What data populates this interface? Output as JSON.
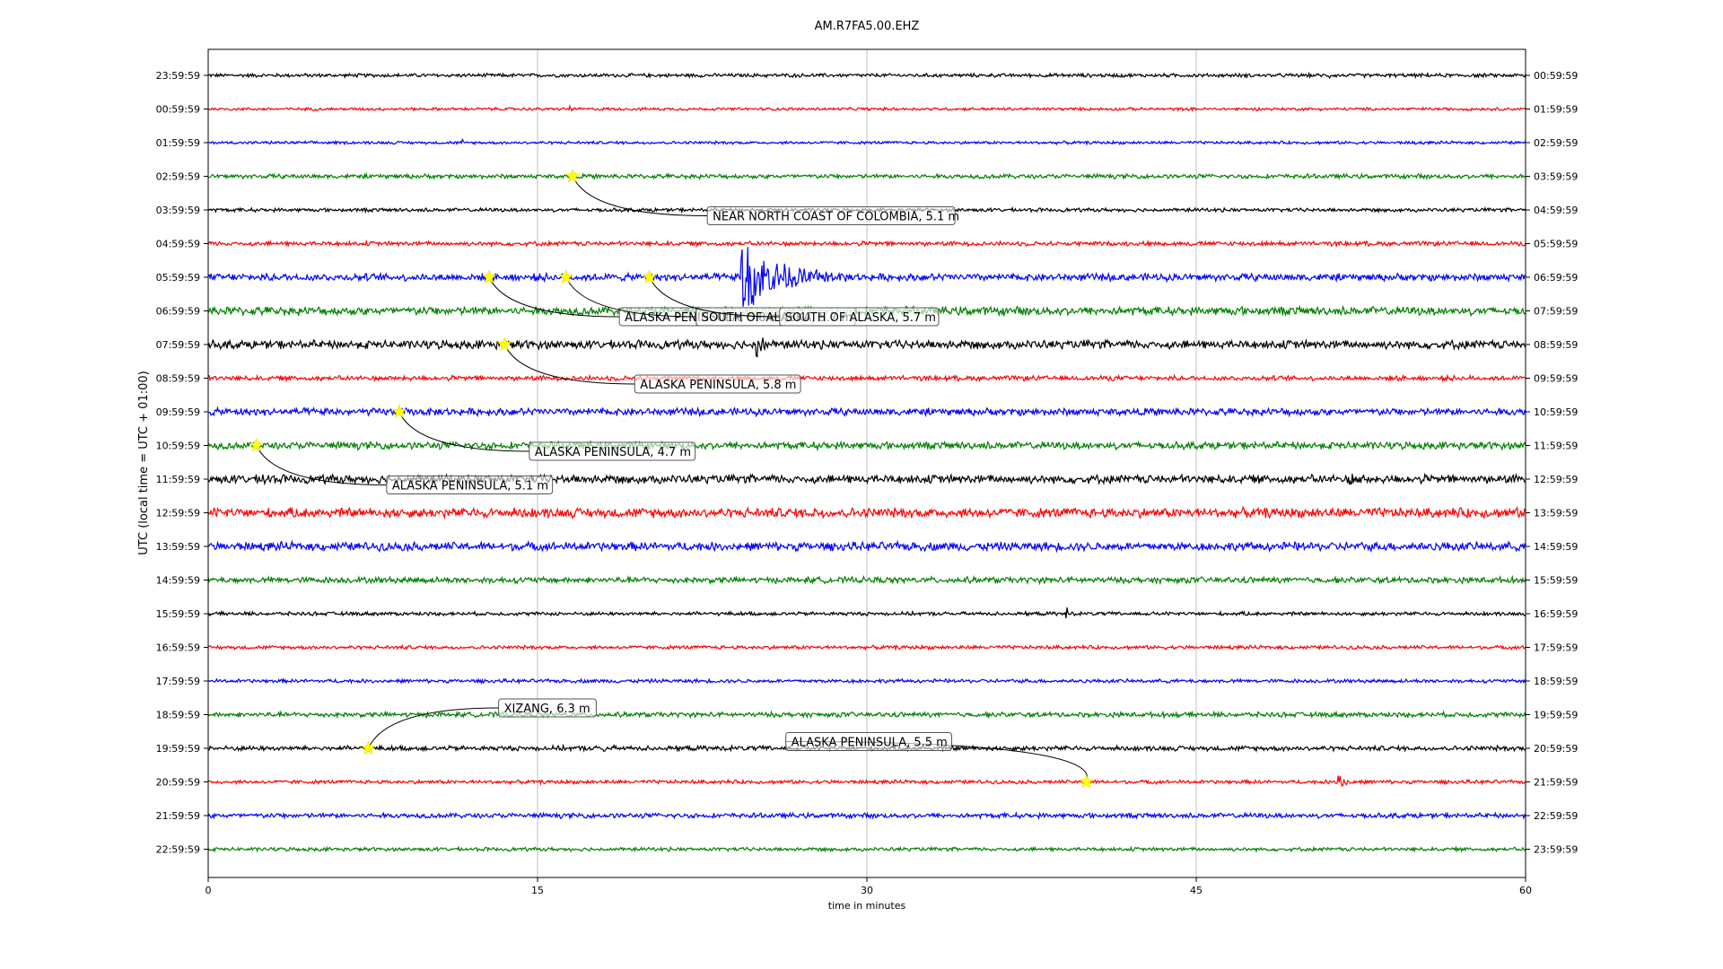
{
  "chart_data": {
    "type": "line",
    "title": "AM.R7FA5.00.EHZ",
    "xlabel": "time in minutes",
    "ylabel": "UTC (local time = UTC + 01:00)",
    "xlim": [
      0,
      60
    ],
    "x_ticks": [
      "0",
      "15",
      "30",
      "45",
      "60"
    ],
    "x_tick_values": [
      0,
      15,
      30,
      45,
      60
    ],
    "grid": "vertical",
    "row_colors": [
      "#000000",
      "#ff0000",
      "#0000ff",
      "#008000"
    ],
    "rows": [
      {
        "left": "23:59:59",
        "right": "00:59:59",
        "noise": 0.15
      },
      {
        "left": "00:59:59",
        "right": "01:59:59",
        "noise": 0.12
      },
      {
        "left": "01:59:59",
        "right": "02:59:59",
        "noise": 0.12
      },
      {
        "left": "02:59:59",
        "right": "03:59:59",
        "noise": 0.18
      },
      {
        "left": "03:59:59",
        "right": "04:59:59",
        "noise": 0.15
      },
      {
        "left": "04:59:59",
        "right": "05:59:59",
        "noise": 0.18
      },
      {
        "left": "05:59:59",
        "right": "06:59:59",
        "noise": 0.3
      },
      {
        "left": "06:59:59",
        "right": "07:59:59",
        "noise": 0.35
      },
      {
        "left": "07:59:59",
        "right": "08:59:59",
        "noise": 0.35
      },
      {
        "left": "08:59:59",
        "right": "09:59:59",
        "noise": 0.2
      },
      {
        "left": "09:59:59",
        "right": "10:59:59",
        "noise": 0.3
      },
      {
        "left": "10:59:59",
        "right": "11:59:59",
        "noise": 0.3
      },
      {
        "left": "11:59:59",
        "right": "12:59:59",
        "noise": 0.35
      },
      {
        "left": "12:59:59",
        "right": "13:59:59",
        "noise": 0.4
      },
      {
        "left": "13:59:59",
        "right": "14:59:59",
        "noise": 0.35
      },
      {
        "left": "14:59:59",
        "right": "15:59:59",
        "noise": 0.25
      },
      {
        "left": "15:59:59",
        "right": "16:59:59",
        "noise": 0.15
      },
      {
        "left": "16:59:59",
        "right": "17:59:59",
        "noise": 0.15
      },
      {
        "left": "17:59:59",
        "right": "18:59:59",
        "noise": 0.15
      },
      {
        "left": "18:59:59",
        "right": "19:59:59",
        "noise": 0.2
      },
      {
        "left": "19:59:59",
        "right": "20:59:59",
        "noise": 0.2
      },
      {
        "left": "20:59:59",
        "right": "21:59:59",
        "noise": 0.15
      },
      {
        "left": "21:59:59",
        "right": "22:59:59",
        "noise": 0.2
      },
      {
        "left": "22:59:59",
        "right": "23:59:59",
        "noise": 0.15
      }
    ],
    "bursts": [
      {
        "row": 0,
        "minute": 31.3,
        "amplitude": 0.35,
        "duration": 0.2
      },
      {
        "row": 0,
        "minute": 51.1,
        "amplitude": 0.3,
        "duration": 0.15
      },
      {
        "row": 0,
        "minute": 60.0,
        "amplitude": 0.6,
        "duration": 0.1
      },
      {
        "row": 1,
        "minute": 16.5,
        "amplitude": 0.25,
        "duration": 0.2
      },
      {
        "row": 2,
        "minute": 11.6,
        "amplitude": 0.3,
        "duration": 0.2
      },
      {
        "row": 2,
        "minute": 55.0,
        "amplitude": 0.7,
        "duration": 0.1
      },
      {
        "row": 6,
        "minute": 24.3,
        "amplitude": 3.6,
        "duration": 5.0
      },
      {
        "row": 8,
        "minute": 25.0,
        "amplitude": 1.2,
        "duration": 0.8
      },
      {
        "row": 12,
        "minute": 2.5,
        "amplitude": 0.6,
        "duration": 0.5
      },
      {
        "row": 12,
        "minute": 52.0,
        "amplitude": 0.4,
        "duration": 2.5
      },
      {
        "row": 13,
        "minute": 27.5,
        "amplitude": 0.5,
        "duration": 1.0
      },
      {
        "row": 13,
        "minute": 8.0,
        "amplitude": 0.4,
        "duration": 0.8
      },
      {
        "row": 16,
        "minute": 39.1,
        "amplitude": 0.6,
        "duration": 0.3
      },
      {
        "row": 20,
        "minute": 18.0,
        "amplitude": 0.3,
        "duration": 0.8
      },
      {
        "row": 21,
        "minute": 51.5,
        "amplitude": 0.7,
        "duration": 1.0
      }
    ],
    "events": [
      {
        "label": "NEAR NORTH COAST OF COLOMBIA, 5.1 m",
        "row": 3,
        "minute": 16.6
      },
      {
        "label": "ALASKA PENINSULA, 5.8 m",
        "row": 6,
        "minute": 12.8
      },
      {
        "label": "SOUTH OF ALASKA, 5.7 m",
        "row": 6,
        "minute": 16.3
      },
      {
        "label": "SOUTH OF ALASKA, 5.7 m",
        "row": 6,
        "minute": 20.1
      },
      {
        "label": "ALASKA PENINSULA, 5.8 m",
        "row": 8,
        "minute": 13.5
      },
      {
        "label": "ALASKA PENINSULA, 4.7 m",
        "row": 10,
        "minute": 8.7
      },
      {
        "label": "ALASKA PENINSULA, 5.1 m",
        "row": 11,
        "minute": 2.2
      },
      {
        "label": "XIZANG, 6.3 m",
        "row": 20,
        "minute": 7.3
      },
      {
        "label": "ALASKA PENINSULA, 5.5 m",
        "row": 21,
        "minute": 40.0
      }
    ]
  }
}
